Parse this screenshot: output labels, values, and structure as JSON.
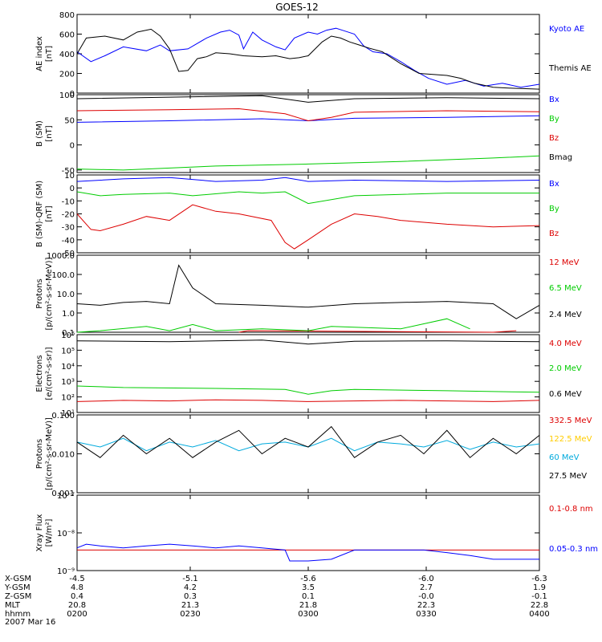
{
  "title": "GOES-12",
  "colors": {
    "black": "#000000",
    "blue": "#0000ff",
    "green": "#00cc00",
    "red": "#dd0000",
    "cyan": "#00aadd",
    "yellow": "#ffcc00"
  },
  "chart_data": [
    {
      "id": "ae",
      "type": "line",
      "ylabel": [
        "AE index",
        "[nT]"
      ],
      "scale": "linear",
      "ylim": [
        0,
        800
      ],
      "yticks": [
        {
          "v": 0,
          "label": "0"
        },
        {
          "v": 200,
          "label": "200"
        },
        {
          "v": 400,
          "label": "400"
        },
        {
          "v": 600,
          "label": "600"
        },
        {
          "v": 800,
          "label": "800"
        }
      ],
      "series": [
        {
          "name": "Kyoto AE",
          "color": "blue",
          "x": [
            0,
            0.03,
            0.06,
            0.1,
            0.15,
            0.18,
            0.2,
            0.24,
            0.28,
            0.31,
            0.33,
            0.35,
            0.36,
            0.38,
            0.4,
            0.43,
            0.45,
            0.47,
            0.5,
            0.52,
            0.54,
            0.56,
            0.58,
            0.6,
            0.62,
            0.64,
            0.67,
            0.7,
            0.73,
            0.76,
            0.8,
            0.84,
            0.88,
            0.92,
            0.96,
            1.0
          ],
          "values": [
            420,
            320,
            380,
            470,
            430,
            490,
            430,
            450,
            560,
            620,
            640,
            590,
            450,
            620,
            540,
            470,
            440,
            560,
            620,
            600,
            640,
            660,
            630,
            600,
            480,
            420,
            400,
            320,
            230,
            150,
            90,
            130,
            70,
            100,
            60,
            90
          ]
        },
        {
          "name": "Themis AE",
          "color": "black",
          "x": [
            0,
            0.02,
            0.06,
            0.1,
            0.13,
            0.16,
            0.18,
            0.2,
            0.22,
            0.24,
            0.26,
            0.28,
            0.3,
            0.33,
            0.36,
            0.4,
            0.43,
            0.46,
            0.48,
            0.5,
            0.53,
            0.55,
            0.57,
            0.59,
            0.61,
            0.63,
            0.66,
            0.7,
            0.74,
            0.77,
            0.8,
            0.83,
            0.86,
            0.9,
            0.94,
            1.0
          ],
          "values": [
            400,
            560,
            580,
            540,
            620,
            650,
            580,
            450,
            220,
            230,
            350,
            370,
            410,
            400,
            380,
            370,
            380,
            350,
            360,
            380,
            520,
            580,
            560,
            520,
            490,
            460,
            420,
            300,
            200,
            190,
            180,
            150,
            100,
            60,
            50,
            40
          ]
        }
      ]
    },
    {
      "id": "b",
      "type": "line",
      "ylabel": [
        "B (SM)",
        "[nT]"
      ],
      "scale": "linear",
      "ylim": [
        -55,
        100
      ],
      "yticks": [
        {
          "v": -50,
          "label": "-50"
        },
        {
          "v": 0,
          "label": "0"
        },
        {
          "v": 50,
          "label": "50"
        },
        {
          "v": 100,
          "label": "100"
        }
      ],
      "series": [
        {
          "name": "Bx",
          "color": "blue",
          "x": [
            0,
            0.2,
            0.4,
            0.5,
            0.6,
            0.8,
            1.0
          ],
          "values": [
            45,
            48,
            52,
            48,
            53,
            55,
            58
          ]
        },
        {
          "name": "By",
          "color": "green",
          "x": [
            0,
            0.1,
            0.3,
            0.5,
            0.7,
            0.9,
            1.0
          ],
          "values": [
            -48,
            -50,
            -42,
            -38,
            -33,
            -26,
            -22
          ]
        },
        {
          "name": "Bz",
          "color": "red",
          "x": [
            0,
            0.2,
            0.35,
            0.45,
            0.5,
            0.55,
            0.6,
            0.8,
            1.0
          ],
          "values": [
            68,
            70,
            72,
            62,
            48,
            55,
            65,
            68,
            66
          ]
        },
        {
          "name": "Bmag",
          "color": "black",
          "x": [
            0,
            0.2,
            0.4,
            0.5,
            0.6,
            0.8,
            1.0
          ],
          "values": [
            92,
            95,
            98,
            85,
            92,
            94,
            92
          ]
        }
      ]
    },
    {
      "id": "bqrf",
      "type": "line",
      "ylabel": [
        "B (SM)-QRF (SM)",
        "[nT]"
      ],
      "scale": "linear",
      "ylim": [
        -50,
        10
      ],
      "yticks": [
        {
          "v": -50,
          "label": "-50"
        },
        {
          "v": -40,
          "label": "-40"
        },
        {
          "v": -30,
          "label": "-30"
        },
        {
          "v": -20,
          "label": "-20"
        },
        {
          "v": -10,
          "label": "-10"
        },
        {
          "v": 0,
          "label": "0"
        },
        {
          "v": 10,
          "label": "10"
        }
      ],
      "series": [
        {
          "name": "Bx",
          "color": "blue",
          "x": [
            0,
            0.1,
            0.2,
            0.3,
            0.4,
            0.45,
            0.5,
            0.6,
            0.8,
            1.0
          ],
          "values": [
            5,
            7,
            8,
            5,
            6,
            8,
            5,
            6,
            5,
            6
          ]
        },
        {
          "name": "By",
          "color": "green",
          "x": [
            0,
            0.05,
            0.1,
            0.2,
            0.25,
            0.35,
            0.4,
            0.45,
            0.5,
            0.6,
            0.8,
            1.0
          ],
          "values": [
            -3,
            -6,
            -5,
            -4,
            -6,
            -3,
            -4,
            -3,
            -12,
            -6,
            -4,
            -4
          ]
        },
        {
          "name": "Bz",
          "color": "red",
          "x": [
            0,
            0.03,
            0.05,
            0.1,
            0.15,
            0.2,
            0.25,
            0.3,
            0.35,
            0.42,
            0.45,
            0.47,
            0.5,
            0.55,
            0.6,
            0.65,
            0.7,
            0.8,
            0.9,
            1.0
          ],
          "values": [
            -20,
            -32,
            -33,
            -28,
            -22,
            -25,
            -13,
            -18,
            -20,
            -25,
            -42,
            -47,
            -40,
            -28,
            -20,
            -22,
            -25,
            -28,
            -30,
            -29
          ]
        }
      ]
    },
    {
      "id": "protons1",
      "type": "line",
      "ylabel": [
        "Protons",
        "[p/(cm²-s-sr-MeV)]"
      ],
      "scale": "log",
      "ylim": [
        0.1,
        1000
      ],
      "yticks": [
        {
          "v": 0.1,
          "label": "0.1"
        },
        {
          "v": 1,
          "label": "1.0"
        },
        {
          "v": 10,
          "label": "10.0"
        },
        {
          "v": 100,
          "label": "100.0"
        },
        {
          "v": 1000,
          "label": "1000.0"
        }
      ],
      "series": [
        {
          "name": "12 MeV",
          "color": "red",
          "x": [
            0.35,
            0.37,
            0.9,
            0.95
          ],
          "values": [
            0.1,
            0.12,
            0.1,
            0.12
          ]
        },
        {
          "name": "6.5 MeV",
          "color": "green",
          "x": [
            0,
            0.05,
            0.15,
            0.2,
            0.25,
            0.3,
            0.4,
            0.5,
            0.55,
            0.7,
            0.8,
            0.85
          ],
          "values": [
            0.1,
            0.12,
            0.2,
            0.12,
            0.25,
            0.12,
            0.15,
            0.12,
            0.2,
            0.15,
            0.5,
            0.15
          ]
        },
        {
          "name": "2.4 MeV",
          "color": "black",
          "x": [
            0,
            0.05,
            0.1,
            0.15,
            0.2,
            0.22,
            0.25,
            0.3,
            0.4,
            0.5,
            0.6,
            0.7,
            0.8,
            0.9,
            0.95,
            1.0
          ],
          "values": [
            3,
            2.5,
            3.5,
            4,
            3,
            300,
            20,
            3,
            2.5,
            2,
            3,
            3.5,
            4,
            3,
            0.5,
            2.5
          ]
        }
      ]
    },
    {
      "id": "electrons",
      "type": "line",
      "ylabel": [
        "Electrons",
        "[e/(cm²-s-sr)]"
      ],
      "scale": "log",
      "ylim": [
        10,
        1000000
      ],
      "yticks": [
        {
          "v": 10,
          "label": "10¹"
        },
        {
          "v": 100,
          "label": "10²"
        },
        {
          "v": 1000,
          "label": "10³"
        },
        {
          "v": 10000,
          "label": "10⁴"
        },
        {
          "v": 100000,
          "label": "10⁵"
        },
        {
          "v": 1000000,
          "label": "10⁶"
        }
      ],
      "series": [
        {
          "name": "4.0 MeV",
          "color": "red",
          "x": [
            0,
            0.1,
            0.2,
            0.3,
            0.4,
            0.5,
            0.6,
            0.7,
            0.8,
            0.9,
            1.0
          ],
          "values": [
            50,
            60,
            55,
            65,
            60,
            50,
            55,
            60,
            55,
            50,
            60
          ]
        },
        {
          "name": "2.0 MeV",
          "color": "green",
          "x": [
            0,
            0.1,
            0.3,
            0.45,
            0.5,
            0.55,
            0.6,
            0.8,
            1.0
          ],
          "values": [
            500,
            400,
            350,
            300,
            150,
            250,
            300,
            250,
            200
          ]
        },
        {
          "name": "0.6 MeV",
          "color": "black",
          "x": [
            0,
            0.2,
            0.4,
            0.5,
            0.6,
            0.8,
            1.0
          ],
          "values": [
            400000,
            350000,
            450000,
            250000,
            380000,
            400000,
            350000
          ]
        }
      ]
    },
    {
      "id": "protons2",
      "type": "line",
      "ylabel": [
        "Protons",
        "[p/(cm²-s-sr-MeV)]"
      ],
      "scale": "log",
      "ylim": [
        0.001,
        0.1
      ],
      "yticks": [
        {
          "v": 0.001,
          "label": "0.001"
        },
        {
          "v": 0.01,
          "label": "0.010"
        },
        {
          "v": 0.1,
          "label": "0.100"
        }
      ],
      "series": [
        {
          "name": "332.5 MeV",
          "color": "red",
          "x": [],
          "values": []
        },
        {
          "name": "122.5 MeV",
          "color": "yellow",
          "x": [],
          "values": []
        },
        {
          "name": "60 MeV",
          "color": "cyan",
          "x": [
            0,
            0.05,
            0.1,
            0.15,
            0.2,
            0.25,
            0.3,
            0.35,
            0.4,
            0.45,
            0.5,
            0.55,
            0.6,
            0.65,
            0.7,
            0.75,
            0.8,
            0.85,
            0.9,
            0.95,
            1.0
          ],
          "values": [
            0.02,
            0.015,
            0.025,
            0.012,
            0.02,
            0.015,
            0.022,
            0.012,
            0.018,
            0.02,
            0.015,
            0.025,
            0.012,
            0.02,
            0.018,
            0.015,
            0.022,
            0.013,
            0.02,
            0.015,
            0.018
          ]
        },
        {
          "name": "27.5 MeV",
          "color": "black",
          "x": [
            0,
            0.05,
            0.1,
            0.15,
            0.2,
            0.25,
            0.3,
            0.35,
            0.4,
            0.45,
            0.5,
            0.55,
            0.6,
            0.65,
            0.7,
            0.75,
            0.8,
            0.85,
            0.9,
            0.95,
            1.0
          ],
          "values": [
            0.02,
            0.008,
            0.03,
            0.01,
            0.025,
            0.008,
            0.02,
            0.04,
            0.01,
            0.025,
            0.015,
            0.05,
            0.008,
            0.02,
            0.03,
            0.01,
            0.04,
            0.008,
            0.025,
            0.01,
            0.03
          ]
        }
      ]
    },
    {
      "id": "xray",
      "type": "line",
      "ylabel": [
        "Xray Flux",
        "[W/m²]"
      ],
      "scale": "log",
      "ylim": [
        1e-09,
        1e-07
      ],
      "yticks": [
        {
          "v": 1e-09,
          "label": "10⁻⁹"
        },
        {
          "v": 1e-08,
          "label": "10⁻⁸"
        },
        {
          "v": 1e-07,
          "label": "10⁻⁷"
        }
      ],
      "series": [
        {
          "name": "0.1-0.8 nm",
          "color": "red",
          "x": [
            0,
            1.0
          ],
          "values": [
            3.5e-09,
            3.5e-09
          ]
        },
        {
          "name": "0.05-0.3 nm",
          "color": "blue",
          "x": [
            0,
            0.02,
            0.05,
            0.1,
            0.15,
            0.2,
            0.25,
            0.3,
            0.35,
            0.4,
            0.45,
            0.46,
            0.5,
            0.55,
            0.6,
            0.7,
            0.75,
            0.8,
            0.85,
            0.9,
            1.0
          ],
          "values": [
            4e-09,
            5e-09,
            4.5e-09,
            4e-09,
            4.5e-09,
            5e-09,
            4.5e-09,
            4e-09,
            4.5e-09,
            4e-09,
            3.5e-09,
            1.8e-09,
            1.8e-09,
            2e-09,
            3.5e-09,
            3.5e-09,
            3.5e-09,
            3e-09,
            2.5e-09,
            2e-09,
            2e-09
          ]
        }
      ]
    }
  ],
  "x_axis": {
    "row_labels": [
      "X-GSM",
      "Y-GSM",
      "Z-GSM",
      "MLT",
      "hhmm"
    ],
    "ticks": [
      {
        "values": [
          "-4.5",
          "4.8",
          "0.4",
          "20.8",
          "0200"
        ]
      },
      {
        "values": [
          "-5.1",
          "4.2",
          "0.3",
          "21.3",
          "0230"
        ]
      },
      {
        "values": [
          "-5.6",
          "3.5",
          "0.1",
          "21.8",
          "0300"
        ]
      },
      {
        "values": [
          "-6.0",
          "2.7",
          "-0.0",
          "22.3",
          "0330"
        ]
      },
      {
        "values": [
          "-6.3",
          "1.9",
          "-0.1",
          "22.8",
          "0400"
        ]
      }
    ],
    "date": "2007 Mar 16"
  }
}
